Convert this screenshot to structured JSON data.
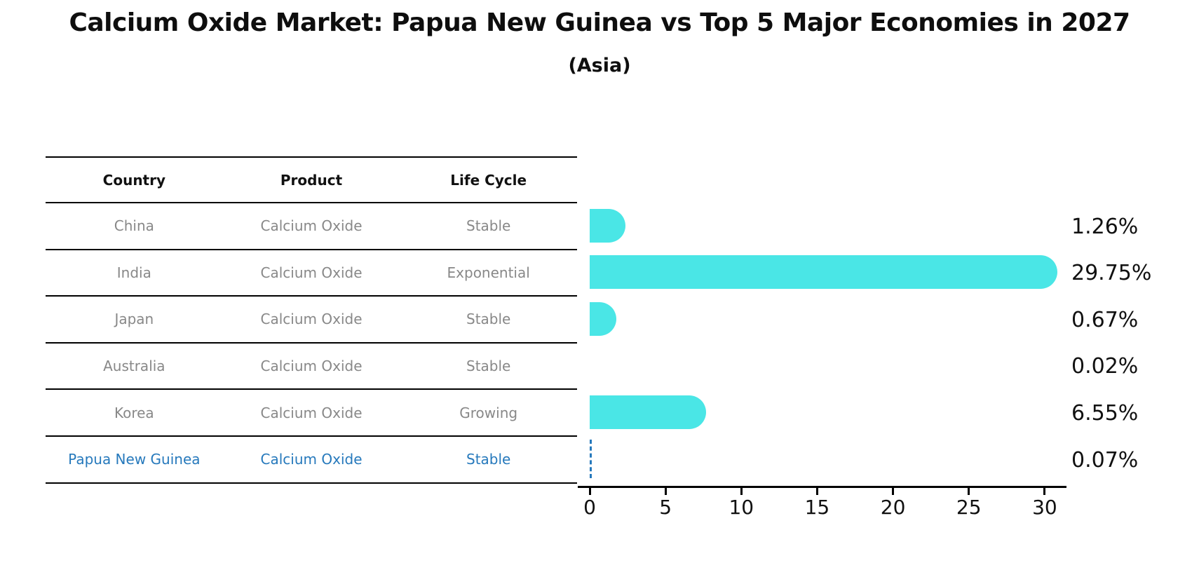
{
  "header": {
    "title": "Calcium Oxide Market: Papua New Guinea vs Top 5 Major Economies in 2027",
    "subtitle": "(Asia)"
  },
  "table": {
    "headers": [
      "Country",
      "Product",
      "Life Cycle"
    ],
    "rows": [
      {
        "country": "China",
        "product": "Calcium Oxide",
        "life_cycle": "Stable",
        "highlighted": false
      },
      {
        "country": "India",
        "product": "Calcium Oxide",
        "life_cycle": "Exponential",
        "highlighted": false
      },
      {
        "country": "Japan",
        "product": "Calcium Oxide",
        "life_cycle": "Stable",
        "highlighted": false
      },
      {
        "country": "Australia",
        "product": "Calcium Oxide",
        "life_cycle": "Stable",
        "highlighted": false
      },
      {
        "country": "Korea",
        "product": "Calcium Oxide",
        "life_cycle": "Growing",
        "highlighted": false
      },
      {
        "country": "Papua New Guinea",
        "product": "Calcium Oxide",
        "life_cycle": "Stable",
        "highlighted": true
      }
    ]
  },
  "chart_data": {
    "type": "bar",
    "orientation": "horizontal",
    "title": "Calcium Oxide Market: Papua New Guinea vs Top 5 Major Economies in 2027",
    "subtitle": "(Asia)",
    "categories": [
      "China",
      "India",
      "Japan",
      "Australia",
      "Korea",
      "Papua New Guinea"
    ],
    "values": [
      1.26,
      29.75,
      0.67,
      0.02,
      6.55,
      0.07
    ],
    "value_labels": [
      "1.26%",
      "29.75%",
      "0.67%",
      "0.02%",
      "6.55%",
      "0.07%"
    ],
    "unit": "%",
    "xticks": [
      "0",
      "5",
      "10",
      "15",
      "20",
      "25",
      "30"
    ],
    "xtick_values": [
      0,
      5,
      10,
      15,
      20,
      25,
      30
    ],
    "xlim": [
      0,
      31.4
    ],
    "grid": false,
    "legend": false,
    "bar_color": "#4AE6E6",
    "highlight_index": 5,
    "highlight_style": "dashed-line",
    "highlight_color": "#2679BC"
  }
}
